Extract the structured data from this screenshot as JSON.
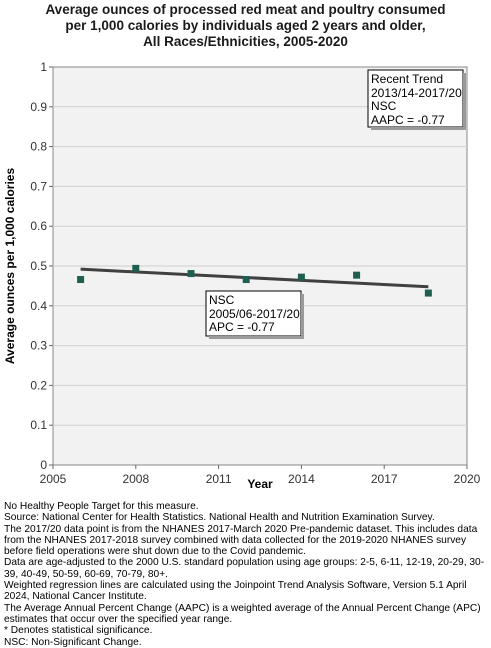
{
  "chart_data": {
    "type": "scatter",
    "title_lines": [
      "Average ounces of processed red meat and poultry consumed",
      "per 1,000 calories by individuals aged 2 years and older,",
      "All Races/Ethnicities,  2005-2020"
    ],
    "xlabel": "Year",
    "ylabel": "Average ounces per 1,000 calories",
    "xlim": [
      2005,
      2020
    ],
    "ylim": [
      0,
      1
    ],
    "x_ticks": [
      2005,
      2008,
      2011,
      2014,
      2017,
      2020
    ],
    "y_ticks": [
      0,
      0.1,
      0.2,
      0.3,
      0.4,
      0.5,
      0.6,
      0.7,
      0.8,
      0.9,
      1
    ],
    "y_tick_labels": [
      "0",
      "0.1",
      "0.2",
      "0.3",
      "0.4",
      "0.5",
      "0.6",
      "0.7",
      "0.8",
      "0.9",
      "1"
    ],
    "grid": "horizontal",
    "points": [
      {
        "x": 2006,
        "y": 0.466
      },
      {
        "x": 2008,
        "y": 0.494
      },
      {
        "x": 2010,
        "y": 0.481
      },
      {
        "x": 2012,
        "y": 0.466
      },
      {
        "x": 2014,
        "y": 0.472
      },
      {
        "x": 2016,
        "y": 0.477
      },
      {
        "x": 2018.6,
        "y": 0.432
      }
    ],
    "trend_line": [
      {
        "x": 2006,
        "y": 0.492
      },
      {
        "x": 2010,
        "y": 0.478
      },
      {
        "x": 2014,
        "y": 0.464
      },
      {
        "x": 2018.6,
        "y": 0.448
      }
    ],
    "colors": {
      "point": "#1e5f52",
      "trend": "#404040",
      "grid": "#cfcfcf",
      "plot_bg": "#f2f2f2"
    },
    "annotations": [
      {
        "lines": [
          "Recent Trend",
          "2013/14-2017/20",
          "NSC",
          "AAPC = -0.77"
        ],
        "placement": "top-right"
      },
      {
        "lines": [
          "NSC",
          "2005/06-2017/20",
          "APC = -0.77"
        ],
        "placement": "center-below-line"
      }
    ]
  },
  "footnotes": [
    "No Healthy People Target for this measure.",
    "Source: National Center for Health Statistics. National Health and Nutrition Examination Survey.",
    "The 2017/20 data point is from the NHANES 2017-March 2020 Pre-pandemic dataset. This includes data from the NHANES 2017-2018 survey combined with data collected for the 2019-2020 NHANES survey before field operations were shut down due to the Covid pandemic.",
    "Data are age-adjusted to the 2000 U.S. standard population using age groups: 2-5, 6-11, 12-19, 20-29, 30-39, 40-49, 50-59, 60-69, 70-79, 80+.",
    "Weighted regression lines are calculated using the Joinpoint Trend Analysis Software, Version 5.1 April 2024, National Cancer Institute.",
    "The Average Annual Percent Change (AAPC) is a weighted average of the Annual Percent Change (APC) estimates that occur over the specified year range.",
    "* Denotes statistical significance.",
    "NSC: Non-Significant Change."
  ]
}
